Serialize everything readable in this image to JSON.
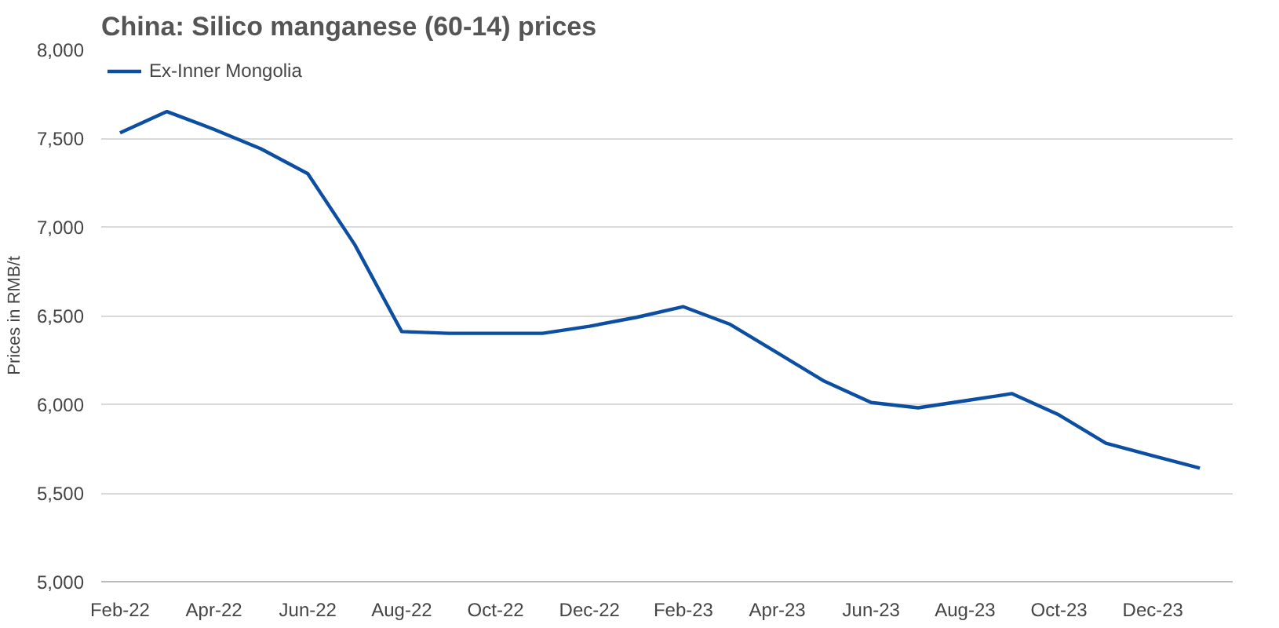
{
  "chart_data": {
    "type": "line",
    "title": "China: Silico manganese (60-14) prices",
    "ylabel": "Prices in RMB/t",
    "categories": [
      "Feb-22",
      null,
      "Apr-22",
      null,
      "Jun-22",
      null,
      "Aug-22",
      null,
      "Oct-22",
      null,
      "Dec-22",
      null,
      "Feb-23",
      null,
      "Apr-23",
      null,
      "Jun-23",
      null,
      "Aug-23",
      null,
      "Oct-23",
      null,
      "Dec-23",
      null
    ],
    "series": [
      {
        "name": "Ex-Inner Mongolia",
        "color": "#0b4ea2",
        "values": [
          7530,
          7650,
          7550,
          7440,
          7300,
          6900,
          6410,
          6400,
          6400,
          6400,
          6440,
          6490,
          6550,
          6450,
          6290,
          6130,
          6010,
          5980,
          6020,
          6060,
          5940,
          5780,
          5710,
          5640
        ]
      }
    ],
    "ylim": [
      5000,
      8000
    ],
    "yticks": [
      {
        "value": 5000,
        "label": "5,000"
      },
      {
        "value": 5500,
        "label": "5,500"
      },
      {
        "value": 6000,
        "label": "6,000"
      },
      {
        "value": 6500,
        "label": "6,500"
      },
      {
        "value": 7000,
        "label": "7,000"
      },
      {
        "value": 7500,
        "label": "7,500"
      },
      {
        "value": 8000,
        "label": "8,000"
      }
    ],
    "grid": "y",
    "legend": "top left",
    "marker": "none",
    "line_style": "solid"
  }
}
